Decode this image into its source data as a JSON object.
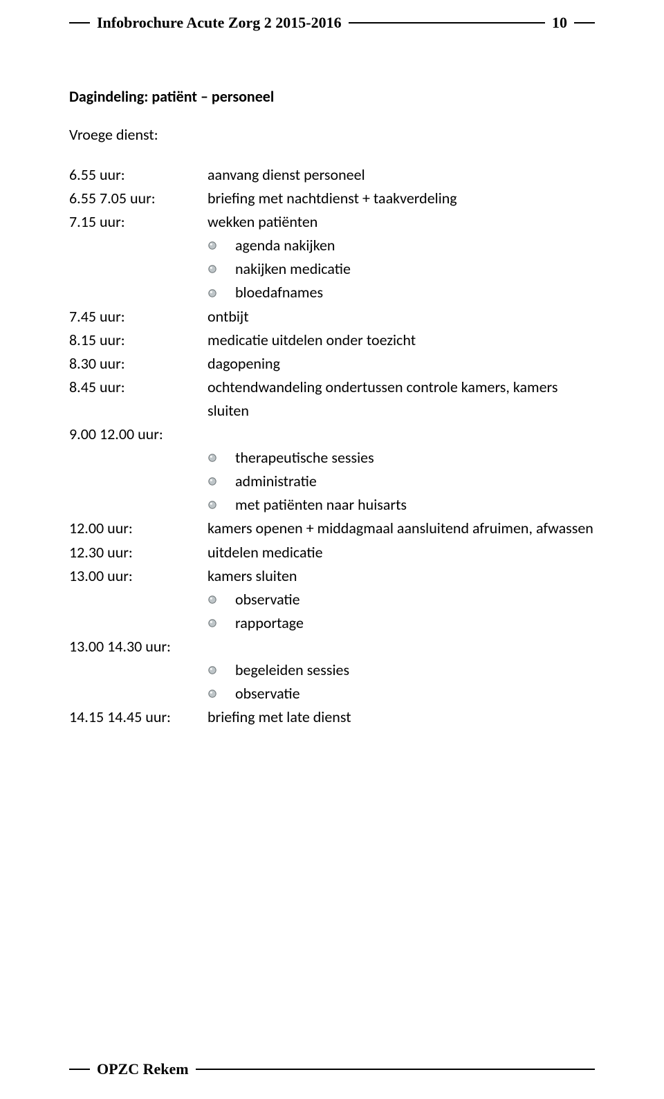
{
  "colors": {
    "text": "#000000",
    "background": "#ffffff",
    "rule": "#000000",
    "bullet_fill": "#bfc6c9",
    "bullet_stroke": "#6b7275"
  },
  "typography": {
    "body_font": "Calibri, Arial, sans-serif",
    "header_font": "Comic Sans MS, cursive",
    "body_size_pt": 16,
    "header_size_pt": 16
  },
  "header": {
    "title": "Infobrochure Acute Zorg 2 2015-2016",
    "page_number": "10"
  },
  "footer": {
    "org": "OPZC Rekem"
  },
  "doc": {
    "title": "Dagindeling: patiënt – personeel",
    "subhead": "Vroege dienst:",
    "entries": [
      {
        "time": "6.55 uur:",
        "desc": "aanvang dienst personeel"
      },
      {
        "time": "6.55 7.05 uur:",
        "desc": "briefing met nachtdienst + taakverdeling"
      },
      {
        "time": "7.15 uur:",
        "desc": "wekken patiënten"
      },
      {
        "bullet": "agenda nakijken"
      },
      {
        "bullet": "nakijken medicatie"
      },
      {
        "bullet": "bloedafnames"
      },
      {
        "time": "7.45 uur:",
        "desc": "ontbijt"
      },
      {
        "time": "8.15 uur:",
        "desc": "medicatie uitdelen onder toezicht"
      },
      {
        "time": "8.30 uur:",
        "desc": "dagopening"
      },
      {
        "time": "8.45 uur:",
        "desc": "ochtendwandeling ondertussen controle kamers, kamers sluiten"
      },
      {
        "time": "9.00 12.00 uur:",
        "desc": ""
      },
      {
        "bullet": "therapeutische sessies"
      },
      {
        "bullet": "administratie"
      },
      {
        "bullet": "met patiënten naar huisarts"
      },
      {
        "time": "12.00 uur:",
        "desc": "kamers openen + middagmaal aansluitend afruimen, afwassen"
      },
      {
        "time": "12.30 uur:",
        "desc": "uitdelen medicatie"
      },
      {
        "time": "13.00 uur:",
        "desc": "kamers sluiten"
      },
      {
        "bullet": "observatie"
      },
      {
        "bullet": "rapportage"
      },
      {
        "time": "13.00 14.30 uur:",
        "desc": ""
      },
      {
        "bullet": "begeleiden sessies"
      },
      {
        "bullet": "observatie"
      },
      {
        "time": "14.15 14.45 uur:",
        "desc": "briefing met late dienst"
      }
    ]
  }
}
